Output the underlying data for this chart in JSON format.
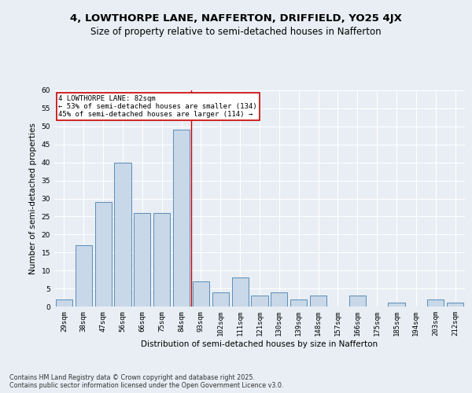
{
  "title_line1": "4, LOWTHORPE LANE, NAFFERTON, DRIFFIELD, YO25 4JX",
  "title_line2": "Size of property relative to semi-detached houses in Nafferton",
  "xlabel": "Distribution of semi-detached houses by size in Nafferton",
  "ylabel": "Number of semi-detached properties",
  "categories": [
    "29sqm",
    "38sqm",
    "47sqm",
    "56sqm",
    "66sqm",
    "75sqm",
    "84sqm",
    "93sqm",
    "102sqm",
    "111sqm",
    "121sqm",
    "130sqm",
    "139sqm",
    "148sqm",
    "157sqm",
    "166sqm",
    "175sqm",
    "185sqm",
    "194sqm",
    "203sqm",
    "212sqm"
  ],
  "values": [
    2,
    17,
    29,
    40,
    26,
    26,
    49,
    7,
    4,
    8,
    3,
    4,
    2,
    3,
    0,
    3,
    0,
    1,
    0,
    2,
    1
  ],
  "bar_color": "#c8d8e8",
  "bar_edge_color": "#5b8db8",
  "highlight_index": 6,
  "highlight_line_color": "#cc0000",
  "annotation_text": "4 LOWTHORPE LANE: 82sqm\n← 53% of semi-detached houses are smaller (134)\n45% of semi-detached houses are larger (114) →",
  "annotation_box_color": "#ffffff",
  "annotation_box_edge": "#cc0000",
  "background_color": "#e8eef4",
  "plot_background": "#e8eef4",
  "grid_color": "#ffffff",
  "title_fontsize": 9.5,
  "subtitle_fontsize": 8.5,
  "axis_label_fontsize": 7.5,
  "tick_fontsize": 6.5,
  "footer_text": "Contains HM Land Registry data © Crown copyright and database right 2025.\nContains public sector information licensed under the Open Government Licence v3.0.",
  "ylim": [
    0,
    60
  ],
  "yticks": [
    0,
    5,
    10,
    15,
    20,
    25,
    30,
    35,
    40,
    45,
    50,
    55,
    60
  ]
}
